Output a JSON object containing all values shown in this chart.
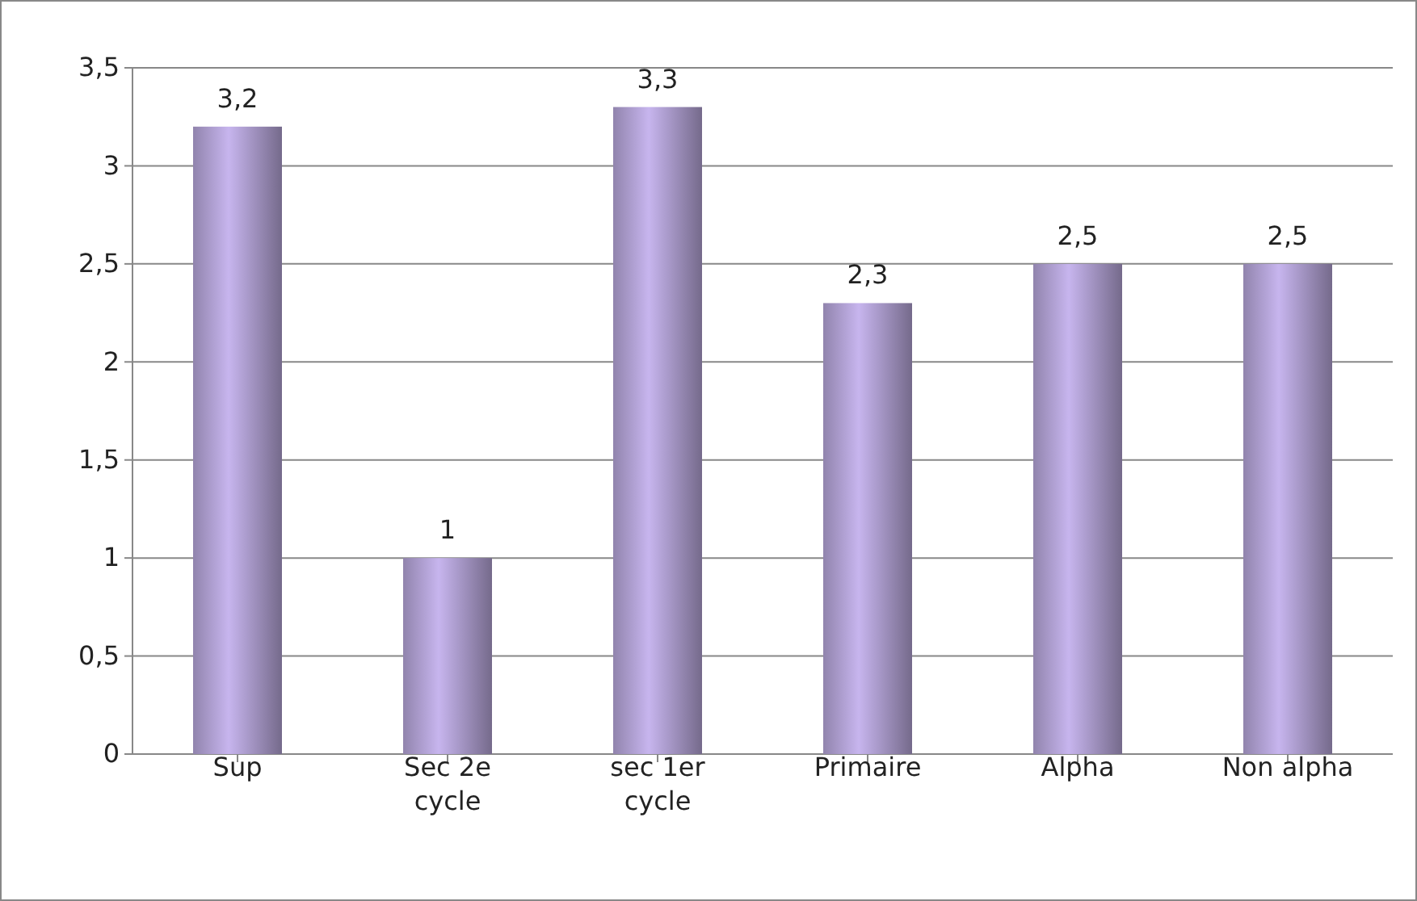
{
  "chart_data": {
    "type": "bar",
    "categories": [
      "Sup",
      "Sec 2e cycle",
      "sec 1er cycle",
      "Primaire",
      "Alpha",
      "Non alpha"
    ],
    "values": [
      3.2,
      1,
      3.3,
      2.3,
      2.5,
      2.5
    ],
    "value_labels": [
      "3,2",
      "1",
      "3,3",
      "2,3",
      "2,5",
      "2,5"
    ],
    "color": "#b3a3d6",
    "ylim": [
      0,
      3.5
    ],
    "yticks": [
      0,
      {
        "value": 0.5,
        "label": "0,5"
      },
      1,
      {
        "value": 1.5,
        "label": "1,5"
      },
      2,
      {
        "value": 2.5,
        "label": "2,5"
      },
      3,
      {
        "value": 3.5,
        "label": "3,5"
      }
    ],
    "grid": "y"
  }
}
